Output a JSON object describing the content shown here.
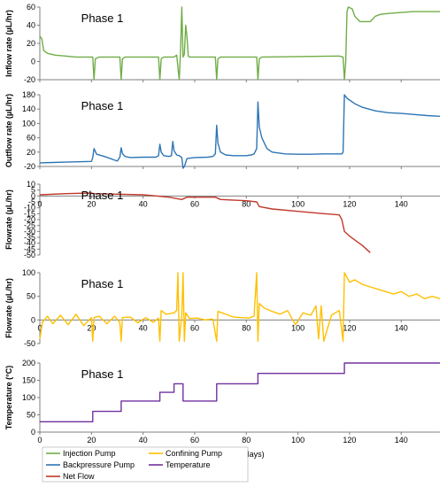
{
  "x_axis_label": "Time (days)",
  "chart_data": [
    {
      "type": "line",
      "ylabel": "Inflow rate (µL/hr)",
      "annotation": "Phase 1",
      "xlim": [
        0,
        155
      ],
      "ylim": [
        -20,
        60
      ],
      "yticks": [
        -20,
        0,
        20,
        40,
        60
      ],
      "xticks": [
        0,
        20,
        40,
        60,
        80,
        100,
        120,
        140
      ],
      "show_xtick_labels": false,
      "series": [
        {
          "name": "Injection Pump",
          "color": "#70ad47",
          "x": [
            0,
            0.8,
            1.5,
            3,
            6,
            10,
            14,
            18,
            20.5,
            21,
            21.5,
            23,
            31,
            31.5,
            32,
            33,
            46,
            46.5,
            47,
            48,
            52,
            53,
            54,
            54.5,
            55,
            55.5,
            56,
            56.5,
            57,
            57.5,
            58,
            66,
            68,
            68.5,
            69,
            70,
            83,
            84,
            84.5,
            85,
            86,
            116,
            117.5,
            118,
            118.5,
            119,
            119.5,
            121,
            122,
            124,
            128,
            130,
            132,
            135,
            140,
            145,
            150,
            155
          ],
          "y": [
            28,
            25,
            12,
            9,
            7,
            6,
            5,
            5,
            5,
            -20,
            3,
            5,
            5,
            -20,
            3,
            5,
            5,
            -20,
            3,
            5,
            5,
            7,
            -20,
            10,
            60,
            5,
            8,
            40,
            28,
            6,
            5,
            5,
            5,
            -20,
            3,
            5,
            5,
            5,
            -20,
            3,
            5,
            6,
            5,
            -20,
            0,
            55,
            60,
            58,
            50,
            44,
            44,
            50,
            52,
            53,
            54,
            55,
            55,
            55
          ]
        }
      ]
    },
    {
      "type": "line",
      "ylabel": "Outflow rate (µL/hr)",
      "annotation": "Phase 1",
      "xlim": [
        0,
        155
      ],
      "ylim": [
        -20,
        180
      ],
      "yticks": [
        -20,
        20,
        60,
        100,
        140,
        180
      ],
      "xticks": [
        0,
        20,
        40,
        60,
        80,
        100,
        120,
        140
      ],
      "show_xtick_labels": false,
      "series": [
        {
          "name": "Backpressure Pump",
          "color": "#2e75b6",
          "x": [
            0,
            5,
            10,
            15,
            20,
            20.5,
            21,
            22,
            25,
            30,
            31,
            31.5,
            32,
            33,
            35,
            40,
            45,
            46,
            46.5,
            47,
            48,
            50,
            51,
            51.5,
            52,
            53,
            54,
            55,
            55.5,
            56,
            57,
            60,
            65,
            67,
            68,
            68.5,
            69,
            70,
            72,
            75,
            80,
            82,
            83,
            84,
            84.5,
            85,
            86,
            88,
            90,
            95,
            100,
            105,
            110,
            115,
            117,
            117.5,
            118,
            119,
            122,
            125,
            130,
            135,
            140,
            145,
            150,
            155
          ],
          "y": [
            -10,
            -9,
            -8,
            -7,
            -6,
            5,
            30,
            14,
            8,
            -5,
            6,
            32,
            16,
            8,
            5,
            6,
            6,
            10,
            42,
            20,
            10,
            8,
            10,
            50,
            24,
            12,
            10,
            5,
            -25,
            -20,
            2,
            5,
            6,
            8,
            15,
            95,
            45,
            20,
            12,
            10,
            10,
            12,
            15,
            30,
            160,
            90,
            60,
            30,
            20,
            15,
            14,
            14,
            15,
            15,
            15,
            20,
            180,
            170,
            155,
            145,
            135,
            130,
            128,
            125,
            122,
            120
          ]
        }
      ]
    },
    {
      "type": "line",
      "ylabel": "Flowrate (µL/hr)",
      "annotation": "Phase 1",
      "xlim": [
        0,
        155
      ],
      "ylim": [
        -50,
        10
      ],
      "yticks": [
        -50,
        -45,
        -40,
        -35,
        -30,
        -25,
        -20,
        -15,
        -10,
        -5,
        0,
        5,
        10
      ],
      "xticks": [
        0,
        20,
        40,
        60,
        80,
        100,
        120,
        140
      ],
      "show_xtick_labels": true,
      "xtick_position": "zero-line",
      "series": [
        {
          "name": "Net Flow",
          "color": "#c0392b",
          "x": [
            0,
            10,
            20,
            21,
            30,
            40,
            45,
            50,
            55,
            57,
            60,
            68,
            70,
            80,
            84,
            85,
            90,
            100,
            110,
            116,
            117,
            118,
            120,
            125,
            128
          ],
          "y": [
            1,
            2,
            2.5,
            2,
            1.5,
            1,
            0,
            -1,
            -3,
            -1,
            -1,
            -1,
            -3,
            -4,
            -5,
            -9,
            -11,
            -13,
            -15,
            -16,
            -20,
            -30,
            -34,
            -42,
            -48
          ]
        }
      ]
    },
    {
      "type": "line",
      "ylabel": "Flowrate (µL/hr)",
      "annotation": "Phase 1",
      "xlim": [
        0,
        155
      ],
      "ylim": [
        -50,
        100
      ],
      "yticks": [
        -50,
        0,
        50,
        100
      ],
      "xticks": [
        0,
        20,
        40,
        60,
        80,
        100,
        120,
        140
      ],
      "show_xtick_labels": true,
      "xtick_position": "zero-line",
      "series": [
        {
          "name": "Confining Pump",
          "color": "#ffc000",
          "x": [
            0,
            1,
            3,
            5,
            8,
            11,
            14,
            17,
            20,
            20.5,
            21,
            23,
            26,
            29,
            31,
            31.5,
            32,
            35,
            38,
            41,
            44,
            46,
            46.5,
            47,
            49,
            52,
            53,
            53.5,
            54,
            55,
            55.5,
            56,
            56.5,
            58,
            61,
            64,
            67,
            68.5,
            69,
            72,
            75,
            78,
            81,
            83,
            84,
            84.5,
            85,
            87,
            90,
            93,
            96,
            99,
            102,
            105,
            107,
            108,
            109,
            110,
            113,
            116,
            117.5,
            118,
            119,
            120,
            122,
            125,
            128,
            131,
            134,
            137,
            140,
            143,
            146,
            149,
            152,
            155
          ],
          "y": [
            -40,
            -5,
            8,
            -8,
            10,
            -10,
            12,
            -12,
            5,
            -45,
            5,
            8,
            -8,
            8,
            -6,
            -45,
            5,
            6,
            -6,
            5,
            -5,
            4,
            -45,
            20,
            12,
            15,
            20,
            100,
            -45,
            10,
            100,
            -45,
            15,
            3,
            4,
            0,
            2,
            -45,
            18,
            12,
            6,
            5,
            4,
            8,
            100,
            -45,
            35,
            25,
            18,
            12,
            20,
            -10,
            15,
            10,
            30,
            -40,
            30,
            -45,
            10,
            20,
            -45,
            100,
            90,
            80,
            85,
            75,
            70,
            65,
            60,
            55,
            60,
            50,
            55,
            45,
            50,
            45
          ]
        }
      ]
    },
    {
      "type": "line",
      "ylabel": "Temperature (°C)",
      "annotation": "Phase 1",
      "xlim": [
        0,
        155
      ],
      "ylim": [
        0,
        200
      ],
      "yticks": [
        0,
        50,
        100,
        150,
        200
      ],
      "xticks": [
        0,
        20,
        40,
        60,
        80,
        100,
        120,
        140
      ],
      "show_xtick_labels": true,
      "xtick_position": "bottom",
      "series": [
        {
          "name": "Temperature",
          "color": "#7030a0",
          "step": true,
          "x": [
            0,
            20.5,
            20.5,
            31.5,
            31.5,
            46.5,
            46.5,
            52,
            52,
            55.5,
            55.5,
            68.5,
            68.5,
            84.5,
            84.5,
            118,
            118,
            155
          ],
          "y": [
            30,
            30,
            60,
            60,
            90,
            90,
            115,
            115,
            140,
            140,
            90,
            90,
            140,
            140,
            170,
            170,
            200,
            200
          ]
        }
      ]
    }
  ],
  "legend": [
    {
      "label": "Injection Pump",
      "color": "#70ad47"
    },
    {
      "label": "Confining Pump",
      "color": "#ffc000"
    },
    {
      "label": "Backpressure Pump",
      "color": "#2e75b6"
    },
    {
      "label": "Temperature",
      "color": "#7030a0"
    },
    {
      "label": "Net Flow",
      "color": "#c0392b"
    }
  ]
}
